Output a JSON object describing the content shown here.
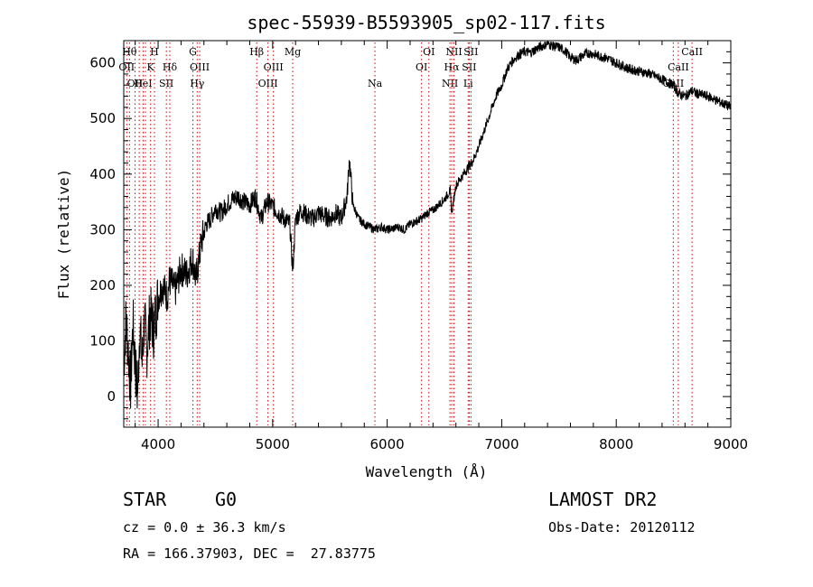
{
  "chart_data": {
    "type": "line",
    "title": "spec-55939-B5593905_sp02-117.fits",
    "xlabel": "Wavelength (Å)",
    "ylabel": "Flux (relative)",
    "xlim": [
      3700,
      9000
    ],
    "ylim": [
      -55,
      640
    ],
    "x_ticks": [
      4000,
      5000,
      6000,
      7000,
      8000,
      9000
    ],
    "y_ticks": [
      0,
      100,
      200,
      300,
      400,
      500,
      600
    ],
    "grid": false,
    "line_color": "#000000",
    "marker_line_color": "#cc0000",
    "series": [
      {
        "x": [
          3700,
          3720,
          3740,
          3760,
          3780,
          3800,
          3820,
          3840,
          3860,
          3880,
          3900,
          3930,
          3960,
          4000,
          4040,
          4080,
          4100,
          4150,
          4200,
          4250,
          4300,
          4330,
          4380,
          4420,
          4460,
          4500,
          4550,
          4600,
          4650,
          4700,
          4750,
          4800,
          4850,
          4900,
          4950,
          4990,
          5050,
          5100,
          5150,
          5175,
          5200,
          5250,
          5300,
          5350,
          5400,
          5450,
          5500,
          5550,
          5600,
          5650,
          5670,
          5700,
          5750,
          5800,
          5850,
          5890,
          5950,
          6000,
          6050,
          6100,
          6150,
          6200,
          6250,
          6300,
          6350,
          6400,
          6450,
          6500,
          6550,
          6563,
          6600,
          6650,
          6700,
          6750,
          6800,
          6850,
          6900,
          6950,
          7000,
          7050,
          7100,
          7150,
          7200,
          7250,
          7300,
          7350,
          7400,
          7450,
          7500,
          7550,
          7600,
          7650,
          7700,
          7750,
          7800,
          7850,
          7900,
          7950,
          8000,
          8100,
          8200,
          8300,
          8400,
          8500,
          8542,
          8600,
          8662,
          8700,
          8800,
          8900,
          8950,
          9000
        ],
        "y": [
          60,
          140,
          80,
          20,
          130,
          60,
          0,
          130,
          60,
          140,
          80,
          150,
          120,
          180,
          200,
          180,
          210,
          190,
          230,
          220,
          250,
          210,
          280,
          310,
          320,
          340,
          330,
          345,
          355,
          360,
          350,
          345,
          360,
          320,
          350,
          345,
          330,
          320,
          310,
          225,
          320,
          335,
          325,
          320,
          330,
          325,
          320,
          330,
          320,
          360,
          430,
          345,
          320,
          310,
          305,
          300,
          305,
          300,
          302,
          305,
          300,
          310,
          315,
          320,
          330,
          335,
          345,
          355,
          370,
          330,
          380,
          395,
          410,
          425,
          450,
          480,
          510,
          540,
          560,
          590,
          605,
          615,
          620,
          618,
          625,
          630,
          635,
          630,
          628,
          622,
          610,
          605,
          612,
          618,
          616,
          612,
          610,
          605,
          600,
          590,
          585,
          580,
          570,
          560,
          545,
          540,
          550,
          545,
          540,
          530,
          525,
          520
        ]
      }
    ],
    "line_markers": [
      {
        "wavelength": 3726,
        "label": "OII",
        "row": 1
      },
      {
        "wavelength": 3750,
        "label": "Hθ",
        "row": 0
      },
      {
        "wavelength": 3798,
        "label": "OII",
        "row": 2
      },
      {
        "wavelength": 3835,
        "label": "",
        "row": 2
      },
      {
        "wavelength": 3869,
        "label": "HeI",
        "row": 2
      },
      {
        "wavelength": 3889,
        "label": "",
        "row": 0
      },
      {
        "wavelength": 3934,
        "label": "K",
        "row": 1
      },
      {
        "wavelength": 3968,
        "label": "H",
        "row": 0
      },
      {
        "wavelength": 4072,
        "label": "SII",
        "row": 2
      },
      {
        "wavelength": 4102,
        "label": "Hδ",
        "row": 1
      },
      {
        "wavelength": 4304,
        "label": "G",
        "row": 0
      },
      {
        "wavelength": 4341,
        "label": "Hγ",
        "row": 2
      },
      {
        "wavelength": 4363,
        "label": "OIII",
        "row": 1
      },
      {
        "wavelength": 4861,
        "label": "Hβ",
        "row": 0
      },
      {
        "wavelength": 4959,
        "label": "OIII",
        "row": 2
      },
      {
        "wavelength": 5007,
        "label": "OIII",
        "row": 1
      },
      {
        "wavelength": 5175,
        "label": "Mg",
        "row": 0
      },
      {
        "wavelength": 5893,
        "label": "Na",
        "row": 2
      },
      {
        "wavelength": 6300,
        "label": "OI",
        "row": 1
      },
      {
        "wavelength": 6364,
        "label": "OI",
        "row": 0
      },
      {
        "wavelength": 6548,
        "label": "NII",
        "row": 2
      },
      {
        "wavelength": 6563,
        "label": "Hα",
        "row": 1
      },
      {
        "wavelength": 6583,
        "label": "NII",
        "row": 0
      },
      {
        "wavelength": 6707,
        "label": "Li",
        "row": 2
      },
      {
        "wavelength": 6716,
        "label": "SII",
        "row": 1
      },
      {
        "wavelength": 6731,
        "label": "SII",
        "row": 0
      },
      {
        "wavelength": 8498,
        "label": "CaII",
        "row": 2
      },
      {
        "wavelength": 8542,
        "label": "CaII",
        "row": 1
      },
      {
        "wavelength": 8662,
        "label": "CaII",
        "row": 0
      }
    ]
  },
  "info": {
    "object_class": "STAR",
    "subclass": "G0",
    "survey": "LAMOST DR2",
    "redshift": "cz = 0.0 ± 36.3 km/s",
    "obs_date": "Obs-Date: 20120112",
    "coords": "RA = 166.37903, DEC =  27.83775"
  }
}
